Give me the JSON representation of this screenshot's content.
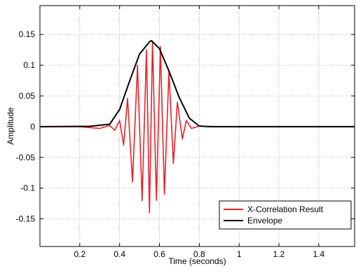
{
  "chart_data": {
    "type": "line",
    "title": "",
    "xlabel": "Time (seconds)",
    "ylabel": "Amplitude",
    "xlim": [
      0,
      1.58
    ],
    "ylim": [
      -0.195,
      0.197
    ],
    "xticks": [
      0.2,
      0.4,
      0.6,
      0.8,
      1,
      1.2,
      1.4
    ],
    "xtick_labels": [
      "0.2",
      "0.4",
      "0.6",
      "0.8",
      "1",
      "1.2",
      "1.4"
    ],
    "yticks": [
      0.15,
      0.1,
      0.05,
      0,
      -0.05,
      -0.1,
      -0.15
    ],
    "ytick_labels": [
      "0.15",
      "0.1",
      "0.05",
      "0",
      "-0.05",
      "-0.1",
      "-0.15"
    ],
    "grid": true,
    "legend_position": "bottom-right",
    "series": [
      {
        "name": "X-Correlation Result",
        "color": "#e8202a",
        "x": [
          0,
          0.2,
          0.3,
          0.35,
          0.375,
          0.4,
          0.42,
          0.44,
          0.465,
          0.49,
          0.513,
          0.535,
          0.55,
          0.565,
          0.585,
          0.605,
          0.625,
          0.648,
          0.67,
          0.69,
          0.715,
          0.735,
          0.76,
          0.8,
          0.9,
          1.2,
          1.58
        ],
        "y": [
          0,
          0,
          -0.003,
          0.002,
          -0.006,
          0.01,
          -0.03,
          0.046,
          -0.09,
          0.1,
          -0.12,
          0.125,
          -0.14,
          0.138,
          -0.12,
          0.13,
          -0.11,
          0.09,
          -0.06,
          0.04,
          -0.02,
          0.01,
          -0.003,
          0.001,
          0,
          0,
          0
        ]
      },
      {
        "name": "Envelope",
        "color": "#000000",
        "x": [
          0,
          0.25,
          0.35,
          0.4,
          0.45,
          0.5,
          0.55,
          0.56,
          0.6,
          0.65,
          0.7,
          0.75,
          0.8,
          0.85,
          1.58
        ],
        "y": [
          0,
          0.0005,
          0.004,
          0.028,
          0.074,
          0.118,
          0.138,
          0.14,
          0.127,
          0.089,
          0.047,
          0.014,
          0.001,
          0,
          0
        ]
      }
    ]
  }
}
